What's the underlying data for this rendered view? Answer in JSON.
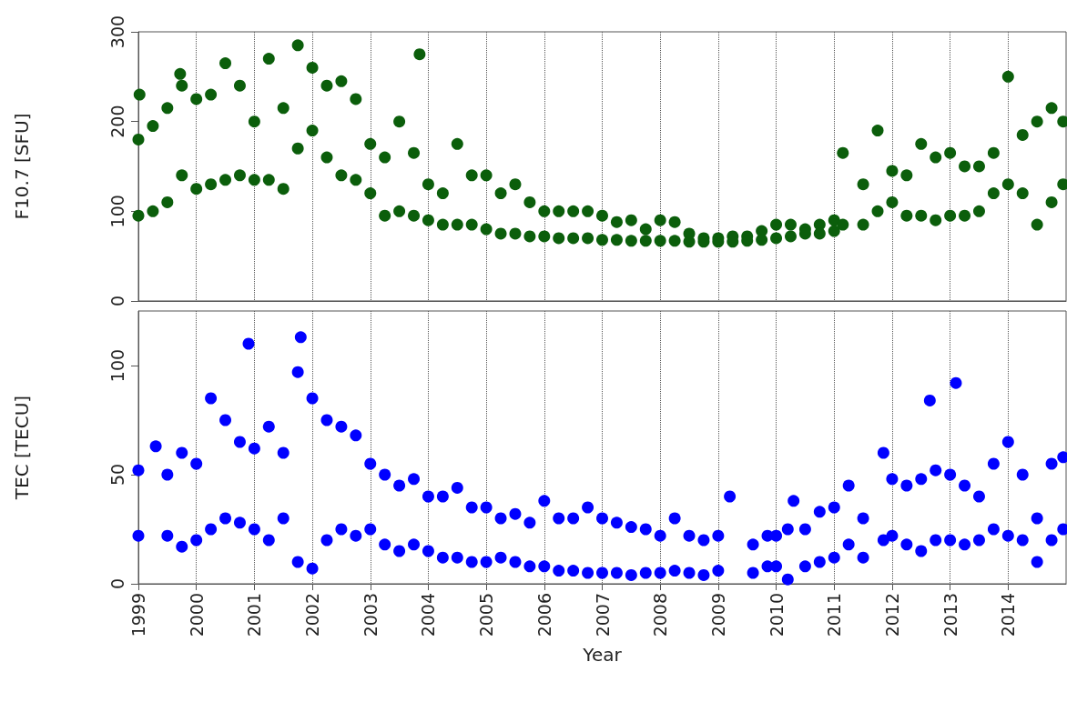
{
  "chart_data": [
    {
      "type": "scatter",
      "ylabel": "F10.7 [SFU]",
      "xlim": [
        1999,
        2015
      ],
      "xticks": [
        1999,
        2000,
        2001,
        2002,
        2003,
        2004,
        2005,
        2006,
        2007,
        2008,
        2009,
        2010,
        2011,
        2012,
        2013,
        2014
      ],
      "ylim": [
        0,
        300
      ],
      "yticks": [
        0,
        100,
        200,
        300
      ],
      "grid": "x",
      "marker": "circle",
      "tick_labels": "y",
      "series": [
        {
          "color": "#0b5e0b",
          "x": [
            1999.0,
            1999.0,
            1999.02,
            1999.25,
            1999.25,
            1999.5,
            1999.5,
            1999.72,
            1999.75,
            1999.75,
            2000.0,
            2000.0,
            2000.25,
            2000.25,
            2000.5,
            2000.5,
            2000.75,
            2000.75,
            2001.0,
            2001.0,
            2001.25,
            2001.25,
            2001.5,
            2001.5,
            2001.75,
            2001.75,
            2002.0,
            2002.0,
            2002.25,
            2002.25,
            2002.5,
            2002.5,
            2002.75,
            2002.75,
            2003.0,
            2003.0,
            2003.25,
            2003.25,
            2003.5,
            2003.5,
            2003.75,
            2003.75,
            2003.85,
            2004.0,
            2004.0,
            2004.25,
            2004.25,
            2004.5,
            2004.5,
            2004.75,
            2004.75,
            2005.0,
            2005.0,
            2005.25,
            2005.25,
            2005.5,
            2005.5,
            2005.75,
            2005.75,
            2006.0,
            2006.0,
            2006.25,
            2006.25,
            2006.5,
            2006.5,
            2006.75,
            2006.75,
            2007.0,
            2007.0,
            2007.25,
            2007.25,
            2007.5,
            2007.5,
            2007.75,
            2007.75,
            2008.0,
            2008.0,
            2008.25,
            2008.25,
            2008.5,
            2008.5,
            2008.75,
            2008.75,
            2009.0,
            2009.0,
            2009.25,
            2009.25,
            2009.5,
            2009.5,
            2009.75,
            2009.75,
            2010.0,
            2010.0,
            2010.25,
            2010.25,
            2010.5,
            2010.5,
            2010.75,
            2010.75,
            2011.0,
            2011.0,
            2011.15,
            2011.15,
            2011.5,
            2011.5,
            2011.75,
            2011.75,
            2012.0,
            2012.0,
            2012.25,
            2012.25,
            2012.5,
            2012.5,
            2012.75,
            2012.75,
            2013.0,
            2013.0,
            2013.25,
            2013.25,
            2013.5,
            2013.5,
            2013.75,
            2013.75,
            2014.0,
            2014.0,
            2014.25,
            2014.25,
            2014.5,
            2014.5,
            2014.75,
            2014.75,
            2014.95,
            2014.95
          ],
          "values": [
            180,
            95,
            230,
            195,
            100,
            215,
            110,
            253,
            240,
            140,
            225,
            125,
            230,
            130,
            265,
            135,
            240,
            140,
            200,
            135,
            270,
            135,
            215,
            125,
            285,
            170,
            260,
            190,
            240,
            160,
            245,
            140,
            225,
            135,
            175,
            120,
            160,
            95,
            200,
            100,
            165,
            95,
            275,
            130,
            90,
            120,
            85,
            175,
            85,
            140,
            85,
            140,
            80,
            120,
            75,
            130,
            75,
            110,
            72,
            100,
            72,
            100,
            70,
            100,
            70,
            100,
            70,
            95,
            68,
            88,
            68,
            90,
            67,
            80,
            67,
            90,
            67,
            88,
            67,
            75,
            66,
            70,
            66,
            70,
            66,
            72,
            66,
            72,
            67,
            78,
            68,
            85,
            70,
            85,
            72,
            80,
            75,
            85,
            75,
            90,
            78,
            165,
            85,
            130,
            85,
            190,
            100,
            145,
            110,
            140,
            95,
            175,
            95,
            160,
            90,
            165,
            95,
            150,
            95,
            150,
            100,
            165,
            120,
            250,
            130,
            185,
            120,
            200,
            85,
            215,
            110,
            200,
            130
          ]
        }
      ]
    },
    {
      "type": "scatter",
      "xlabel": "Year",
      "ylabel": "TEC [TECU]",
      "xlim": [
        1999,
        2015
      ],
      "xticks": [
        1999,
        2000,
        2001,
        2002,
        2003,
        2004,
        2005,
        2006,
        2007,
        2008,
        2009,
        2010,
        2011,
        2012,
        2013,
        2014
      ],
      "ylim": [
        0,
        125
      ],
      "yticks": [
        0,
        50,
        100
      ],
      "grid": "x",
      "marker": "circle",
      "series": [
        {
          "color": "#0000ff",
          "x": [
            1999.0,
            1999.0,
            1999.3,
            1999.5,
            1999.5,
            1999.75,
            1999.75,
            2000.0,
            2000.0,
            2000.25,
            2000.25,
            2000.5,
            2000.5,
            2000.75,
            2000.75,
            2000.9,
            2001.0,
            2001.0,
            2001.25,
            2001.25,
            2001.5,
            2001.5,
            2001.75,
            2001.75,
            2001.8,
            2002.0,
            2002.0,
            2002.25,
            2002.25,
            2002.5,
            2002.5,
            2002.75,
            2002.75,
            2003.0,
            2003.0,
            2003.25,
            2003.25,
            2003.5,
            2003.5,
            2003.75,
            2003.75,
            2004.0,
            2004.0,
            2004.25,
            2004.25,
            2004.5,
            2004.5,
            2004.75,
            2004.75,
            2005.0,
            2005.0,
            2005.25,
            2005.25,
            2005.5,
            2005.5,
            2005.75,
            2005.75,
            2006.0,
            2006.0,
            2006.25,
            2006.25,
            2006.5,
            2006.5,
            2006.75,
            2006.75,
            2007.0,
            2007.0,
            2007.25,
            2007.25,
            2007.5,
            2007.5,
            2007.75,
            2007.75,
            2008.0,
            2008.0,
            2008.25,
            2008.25,
            2008.5,
            2008.5,
            2008.75,
            2008.75,
            2009.0,
            2009.0,
            2009.2,
            2009.6,
            2009.6,
            2009.85,
            2009.85,
            2010.0,
            2010.0,
            2010.2,
            2010.2,
            2010.3,
            2010.5,
            2010.5,
            2010.75,
            2010.75,
            2011.0,
            2011.0,
            2011.25,
            2011.25,
            2011.5,
            2011.5,
            2011.85,
            2011.85,
            2012.0,
            2012.0,
            2012.25,
            2012.25,
            2012.5,
            2012.5,
            2012.65,
            2012.75,
            2012.75,
            2013.0,
            2013.0,
            2013.1,
            2013.25,
            2013.25,
            2013.5,
            2013.5,
            2013.75,
            2013.75,
            2014.0,
            2014.0,
            2014.25,
            2014.25,
            2014.5,
            2014.5,
            2014.75,
            2014.75,
            2014.95,
            2014.95
          ],
          "values": [
            52,
            22,
            63,
            50,
            22,
            60,
            17,
            55,
            20,
            85,
            25,
            75,
            30,
            65,
            28,
            110,
            62,
            25,
            72,
            20,
            60,
            30,
            97,
            10,
            113,
            85,
            7,
            75,
            20,
            72,
            25,
            68,
            22,
            55,
            25,
            50,
            18,
            45,
            15,
            48,
            18,
            40,
            15,
            40,
            12,
            44,
            12,
            35,
            10,
            35,
            10,
            30,
            12,
            32,
            10,
            28,
            8,
            38,
            8,
            30,
            6,
            30,
            6,
            35,
            5,
            30,
            5,
            28,
            5,
            26,
            4,
            25,
            5,
            22,
            5,
            30,
            6,
            22,
            5,
            20,
            4,
            22,
            6,
            40,
            18,
            5,
            22,
            8,
            22,
            8,
            25,
            2,
            38,
            25,
            8,
            33,
            10,
            35,
            12,
            45,
            18,
            30,
            12,
            60,
            20,
            48,
            22,
            45,
            18,
            48,
            15,
            84,
            52,
            20,
            50,
            20,
            92,
            45,
            18,
            40,
            20,
            55,
            25,
            65,
            22,
            50,
            20,
            30,
            10,
            55,
            20,
            58,
            25
          ]
        }
      ]
    }
  ]
}
